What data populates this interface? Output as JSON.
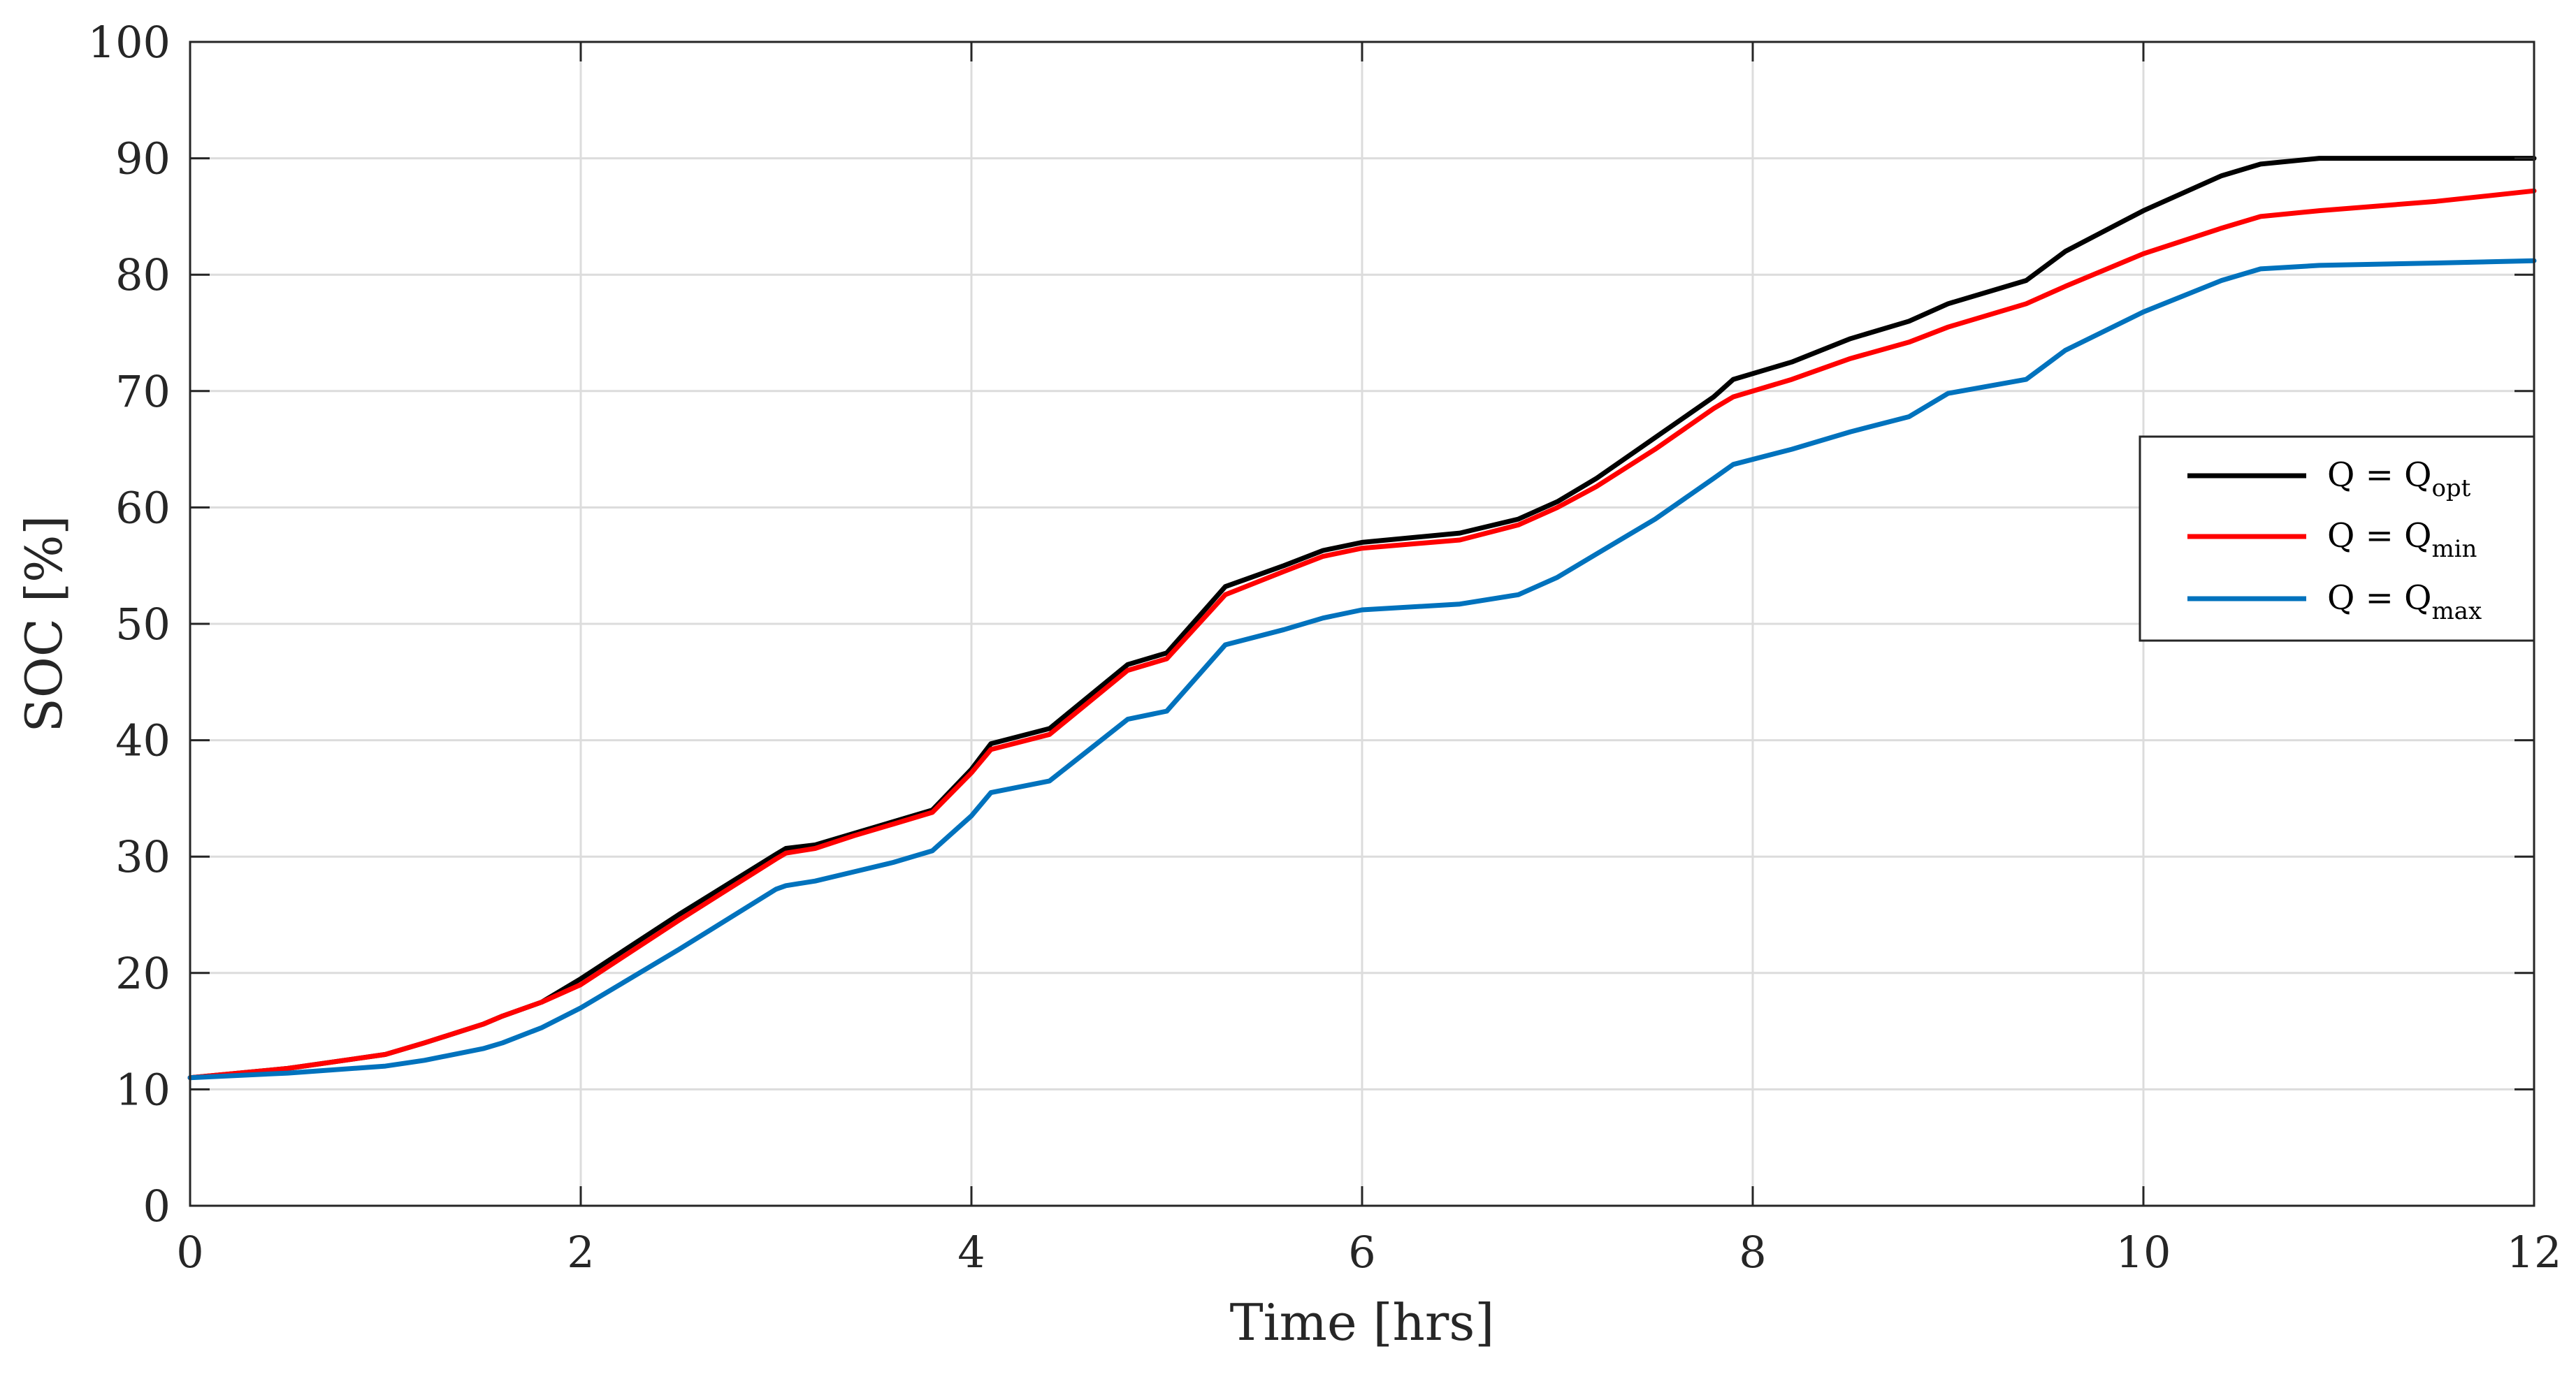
{
  "chart_data": {
    "type": "line",
    "xlabel": "Time [hrs]",
    "ylabel": "SOC [%]",
    "xlim": [
      0,
      12
    ],
    "ylim": [
      0,
      100
    ],
    "xticks": [
      0,
      2,
      4,
      6,
      8,
      10,
      12
    ],
    "yticks": [
      0,
      10,
      20,
      30,
      40,
      50,
      60,
      70,
      80,
      90,
      100
    ],
    "grid": true,
    "legend_position": "right",
    "series": [
      {
        "name": "Q = Q",
        "subscript": "opt",
        "color": "#000000",
        "x": [
          0,
          0.5,
          1.0,
          1.2,
          1.5,
          1.6,
          1.8,
          2.0,
          2.5,
          3.0,
          3.05,
          3.2,
          3.4,
          3.6,
          3.8,
          4.0,
          4.1,
          4.4,
          4.8,
          5.0,
          5.3,
          5.6,
          5.8,
          6.0,
          6.5,
          6.8,
          7.0,
          7.2,
          7.5,
          7.8,
          7.9,
          8.2,
          8.5,
          8.8,
          9.0,
          9.4,
          9.6,
          10.0,
          10.4,
          10.6,
          10.9,
          11.5,
          12.0
        ],
        "y": [
          11.0,
          11.8,
          13.0,
          14.0,
          15.6,
          16.3,
          17.5,
          19.5,
          25.0,
          30.2,
          30.7,
          31.0,
          32.0,
          33.0,
          34.0,
          37.5,
          39.7,
          41.0,
          46.5,
          47.5,
          53.2,
          55.0,
          56.3,
          57.0,
          57.8,
          59.0,
          60.5,
          62.5,
          66.0,
          69.5,
          71.0,
          72.5,
          74.5,
          76.0,
          77.5,
          79.5,
          82.0,
          85.5,
          88.5,
          89.5,
          90.0,
          90.0,
          90.0
        ]
      },
      {
        "name": "Q = Q",
        "subscript": "min",
        "color": "#ff0000",
        "x": [
          0,
          0.5,
          1.0,
          1.2,
          1.5,
          1.6,
          1.8,
          2.0,
          2.5,
          3.0,
          3.05,
          3.2,
          3.4,
          3.6,
          3.8,
          4.0,
          4.1,
          4.4,
          4.8,
          5.0,
          5.3,
          5.6,
          5.8,
          6.0,
          6.5,
          6.8,
          7.0,
          7.2,
          7.5,
          7.8,
          7.9,
          8.2,
          8.5,
          8.8,
          9.0,
          9.4,
          9.6,
          10.0,
          10.4,
          10.6,
          10.9,
          11.5,
          12.0
        ],
        "y": [
          11.0,
          11.8,
          13.0,
          14.0,
          15.6,
          16.3,
          17.5,
          19.0,
          24.5,
          29.8,
          30.3,
          30.7,
          31.8,
          32.8,
          33.8,
          37.2,
          39.2,
          40.5,
          46.0,
          47.0,
          52.5,
          54.5,
          55.8,
          56.5,
          57.2,
          58.5,
          60.0,
          61.8,
          65.0,
          68.5,
          69.5,
          71.0,
          72.8,
          74.2,
          75.5,
          77.5,
          79.0,
          81.8,
          84.0,
          85.0,
          85.5,
          86.3,
          87.2
        ]
      },
      {
        "name": "Q = Q",
        "subscript": "max",
        "color": "#0072bd",
        "x": [
          0,
          0.5,
          1.0,
          1.2,
          1.5,
          1.6,
          1.8,
          2.0,
          2.5,
          3.0,
          3.05,
          3.2,
          3.4,
          3.6,
          3.8,
          4.0,
          4.1,
          4.4,
          4.8,
          5.0,
          5.3,
          5.6,
          5.8,
          6.0,
          6.5,
          6.8,
          7.0,
          7.2,
          7.5,
          7.8,
          7.9,
          8.2,
          8.5,
          8.8,
          9.0,
          9.4,
          9.6,
          10.0,
          10.4,
          10.6,
          10.9,
          11.5,
          12.0
        ],
        "y": [
          11.0,
          11.4,
          12.0,
          12.5,
          13.5,
          14.0,
          15.3,
          17.0,
          22.0,
          27.2,
          27.5,
          27.9,
          28.7,
          29.5,
          30.5,
          33.5,
          35.5,
          36.5,
          41.8,
          42.5,
          48.2,
          49.5,
          50.5,
          51.2,
          51.7,
          52.5,
          54.0,
          56.0,
          59.0,
          62.5,
          63.7,
          65.0,
          66.5,
          67.8,
          69.8,
          71.0,
          73.5,
          76.8,
          79.5,
          80.5,
          80.8,
          81.0,
          81.2
        ]
      }
    ]
  }
}
